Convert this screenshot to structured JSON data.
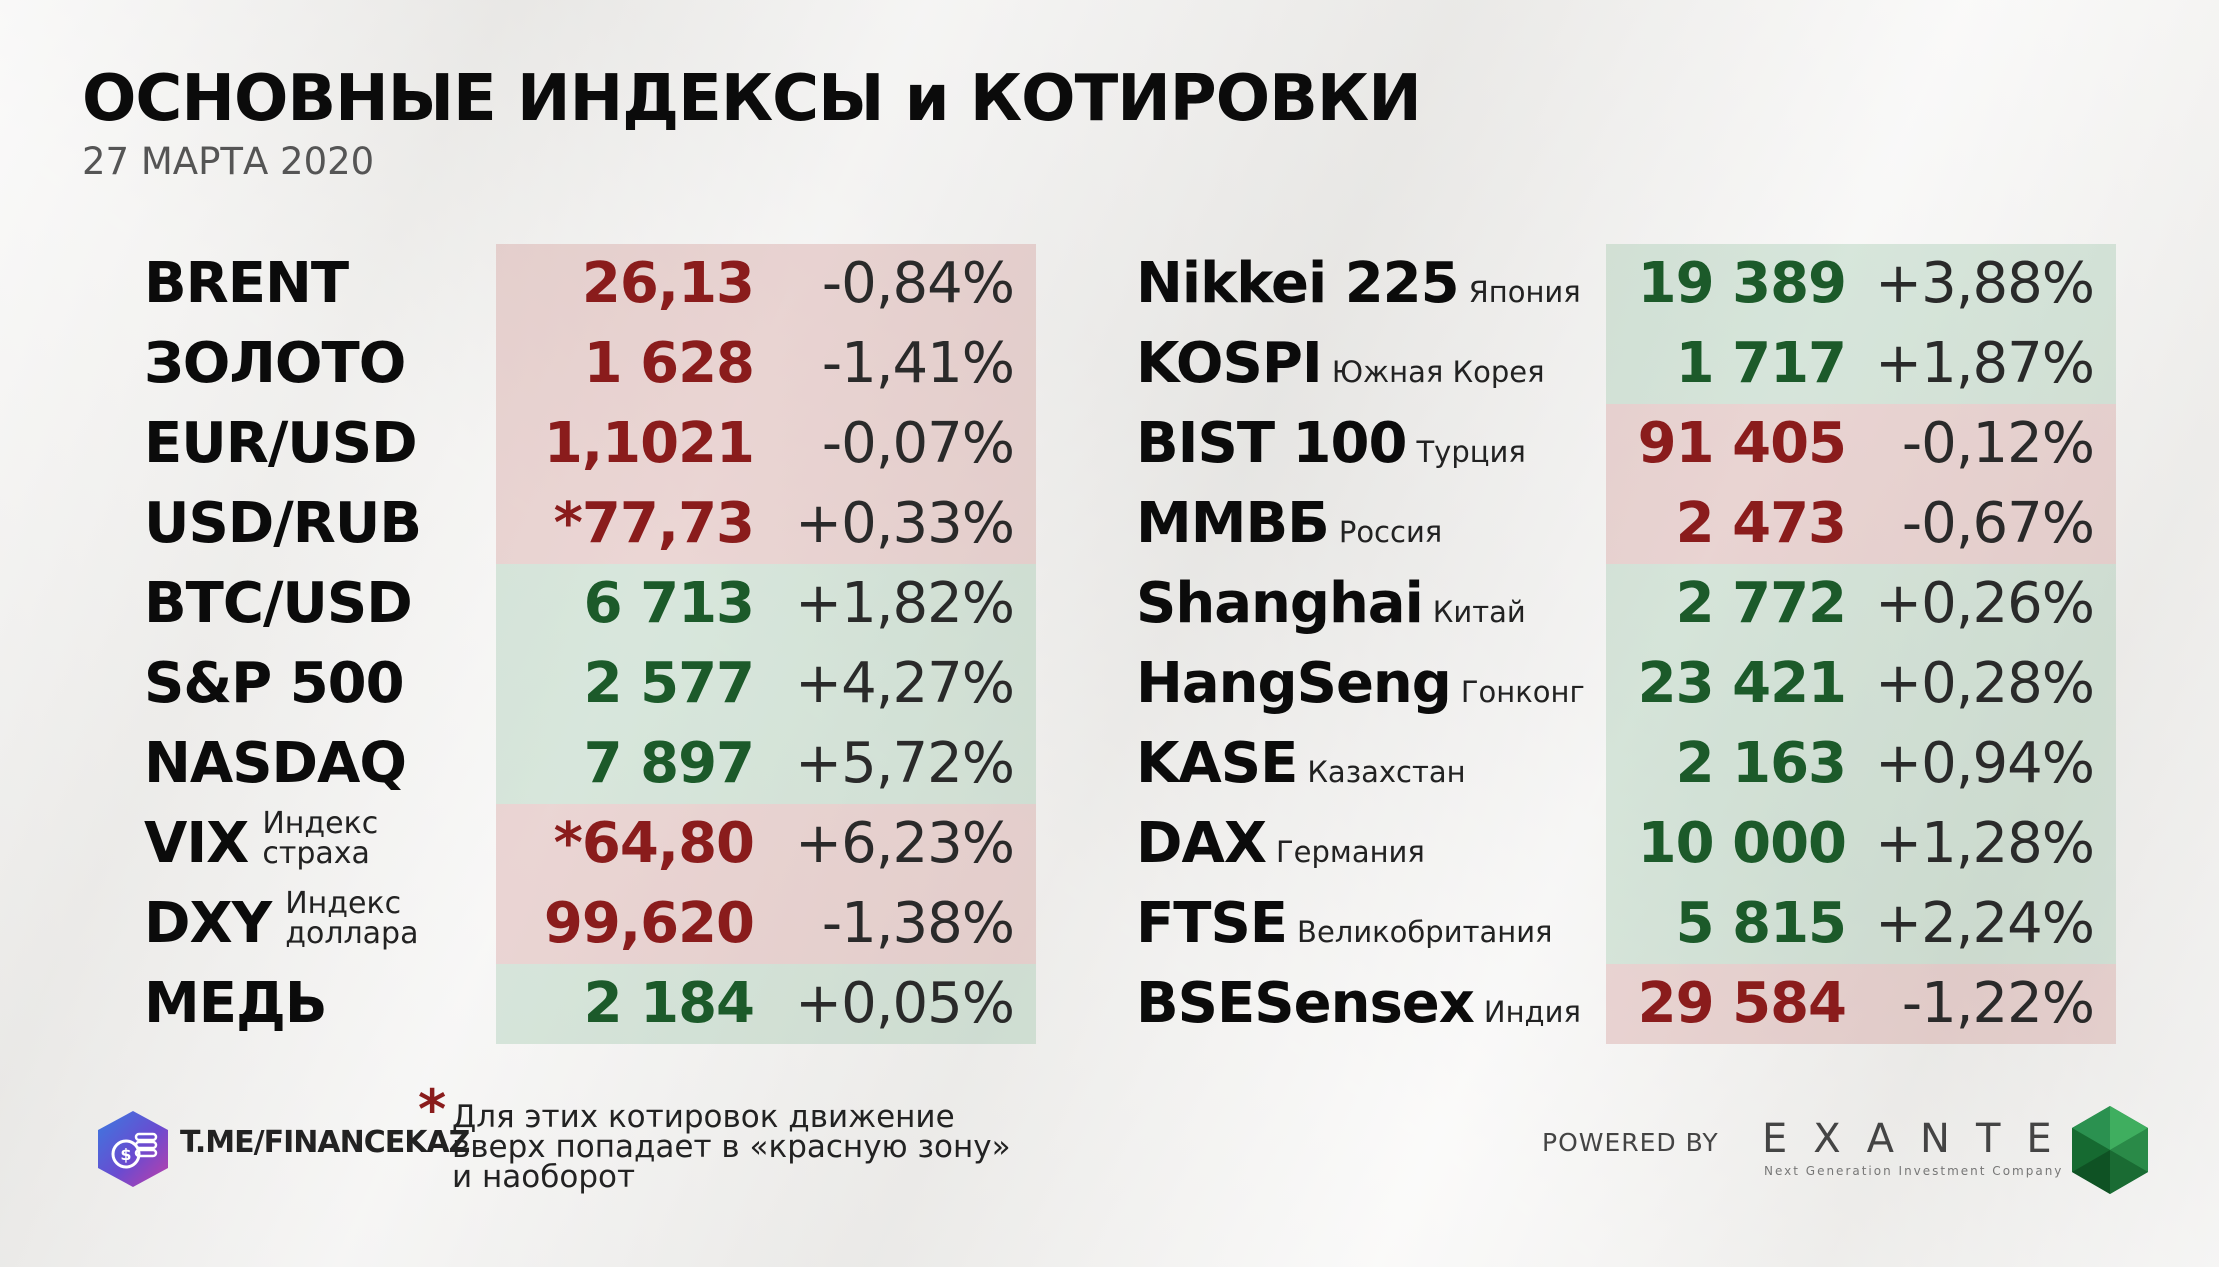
{
  "title": "ОСНОВНЫЕ ИНДЕКСЫ и КОТИРОВКИ",
  "date": "27 МАРТА 2020",
  "colors": {
    "negative_bg": "#e3c6c2",
    "positive_bg": "#cfe0d3",
    "negative_text": "#8a1c1c",
    "positive_text": "#1c5a2a"
  },
  "left_rows": [
    {
      "name": "BRENT",
      "value": "26,13",
      "change": "-0,84%",
      "zone": "red"
    },
    {
      "name": "ЗОЛОТО",
      "value": "1 628",
      "change": "-1,41%",
      "zone": "red"
    },
    {
      "name": "EUR/USD",
      "value": "1,1021",
      "change": "-0,07%",
      "zone": "red"
    },
    {
      "name": "USD/RUB",
      "value": "*77,73",
      "change": "+0,33%",
      "zone": "red"
    },
    {
      "name": "BTC/USD",
      "value": "6 713",
      "change": "+1,82%",
      "zone": "green"
    },
    {
      "name": "S&P 500",
      "value": "2 577",
      "change": "+4,27%",
      "zone": "green"
    },
    {
      "name": "NASDAQ",
      "value": "7 897",
      "change": "+5,72%",
      "zone": "green"
    },
    {
      "name": "VIX",
      "sub1": "Индекс",
      "sub2": "страха",
      "value": "*64,80",
      "change": "+6,23%",
      "zone": "red"
    },
    {
      "name": "DXY",
      "sub1": "Индекс",
      "sub2": "доллара",
      "value": "99,620",
      "change": "-1,38%",
      "zone": "red"
    },
    {
      "name": "МЕДЬ",
      "value": "2 184",
      "change": "+0,05%",
      "zone": "green"
    }
  ],
  "right_rows": [
    {
      "name": "Nikkei 225",
      "country": "Япония",
      "value": "19 389",
      "change": "+3,88%",
      "zone": "green"
    },
    {
      "name": "KOSPI",
      "country": "Южная Корея",
      "value": "1 717",
      "change": "+1,87%",
      "zone": "green"
    },
    {
      "name": "BIST 100",
      "country": "Турция",
      "value": "91 405",
      "change": "-0,12%",
      "zone": "red"
    },
    {
      "name": "ММВБ",
      "country": "Россия",
      "value": "2 473",
      "change": "-0,67%",
      "zone": "red"
    },
    {
      "name": "Shanghai",
      "country": "Китай",
      "value": "2 772",
      "change": "+0,26%",
      "zone": "green"
    },
    {
      "name": "HangSeng",
      "country": "Гонконг",
      "value": "23 421",
      "change": "+0,28%",
      "zone": "green"
    },
    {
      "name": "KASE",
      "country": "Казахстан",
      "value": "2 163",
      "change": "+0,94%",
      "zone": "green"
    },
    {
      "name": "DAX",
      "country": "Германия",
      "value": "10 000",
      "change": "+1,28%",
      "zone": "green"
    },
    {
      "name": "FTSE",
      "country": "Великобритания",
      "value": "5 815",
      "change": "+2,24%",
      "zone": "green"
    },
    {
      "name": "BSESensex",
      "country": "Индия",
      "value": "29 584",
      "change": "-1,22%",
      "zone": "red"
    }
  ],
  "footer": {
    "channel": "T.ME/FINANCEKAZ",
    "note_marker": "*",
    "note_lines": [
      "Для этих котировок движение",
      "вверх попадает в «красную зону»",
      "и наоборот"
    ],
    "powered_by": "POWERED BY",
    "brand": "EXANTE",
    "brand_tagline": "Next Generation Investment Company",
    "channel_icon": "coins-icon",
    "brand_icon": "emerald-gem-icon"
  }
}
